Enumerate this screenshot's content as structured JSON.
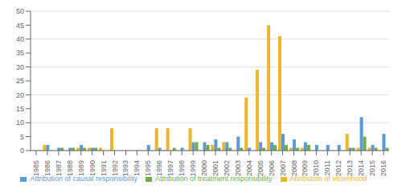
{
  "chart_data": {
    "type": "bar",
    "categories": [
      "1985",
      "1986",
      "1987",
      "1988",
      "1989",
      "1990",
      "1991",
      "1992",
      "1993",
      "1994",
      "1995",
      "1996",
      "1997",
      "1998",
      "1999",
      "2000",
      "2001",
      "2002",
      "2003",
      "2004",
      "2005",
      "2006",
      "2007",
      "2008",
      "2009",
      "2010",
      "2011",
      "2012",
      "2013",
      "2014",
      "2015",
      "2016"
    ],
    "series": [
      {
        "name": "Attribution of victimhood",
        "color": "#f0b429",
        "values": [
          0,
          2,
          0,
          0,
          1,
          1,
          1,
          8,
          0,
          0,
          0,
          8,
          8,
          0,
          8,
          0,
          2,
          3,
          0,
          19,
          29,
          45,
          41,
          1,
          1,
          0,
          0,
          0,
          6,
          1,
          1,
          0
        ]
      },
      {
        "name": "Attribution of causal responsibility",
        "color": "#5b9bd5",
        "values": [
          0,
          2,
          1,
          1,
          2,
          1,
          0,
          0,
          0,
          0,
          2,
          1,
          0,
          1,
          3,
          3,
          4,
          3,
          5,
          1,
          3,
          3,
          6,
          4,
          3,
          2,
          2,
          2,
          1,
          12,
          2,
          6
        ]
      },
      {
        "name": "Attribution of treatment responsibility",
        "color": "#70ad47",
        "values": [
          0,
          0,
          1,
          1,
          1,
          1,
          0,
          0,
          0,
          0,
          0,
          0,
          1,
          0,
          3,
          2,
          1,
          1,
          1,
          0,
          1,
          2,
          2,
          1,
          2,
          0,
          0,
          0,
          1,
          5,
          1,
          1
        ]
      }
    ],
    "ylim": [
      0,
      50
    ],
    "yticks": [
      0,
      5,
      10,
      15,
      20,
      25,
      30,
      35,
      40,
      45,
      50
    ],
    "grid": true,
    "legend": "bottom"
  }
}
